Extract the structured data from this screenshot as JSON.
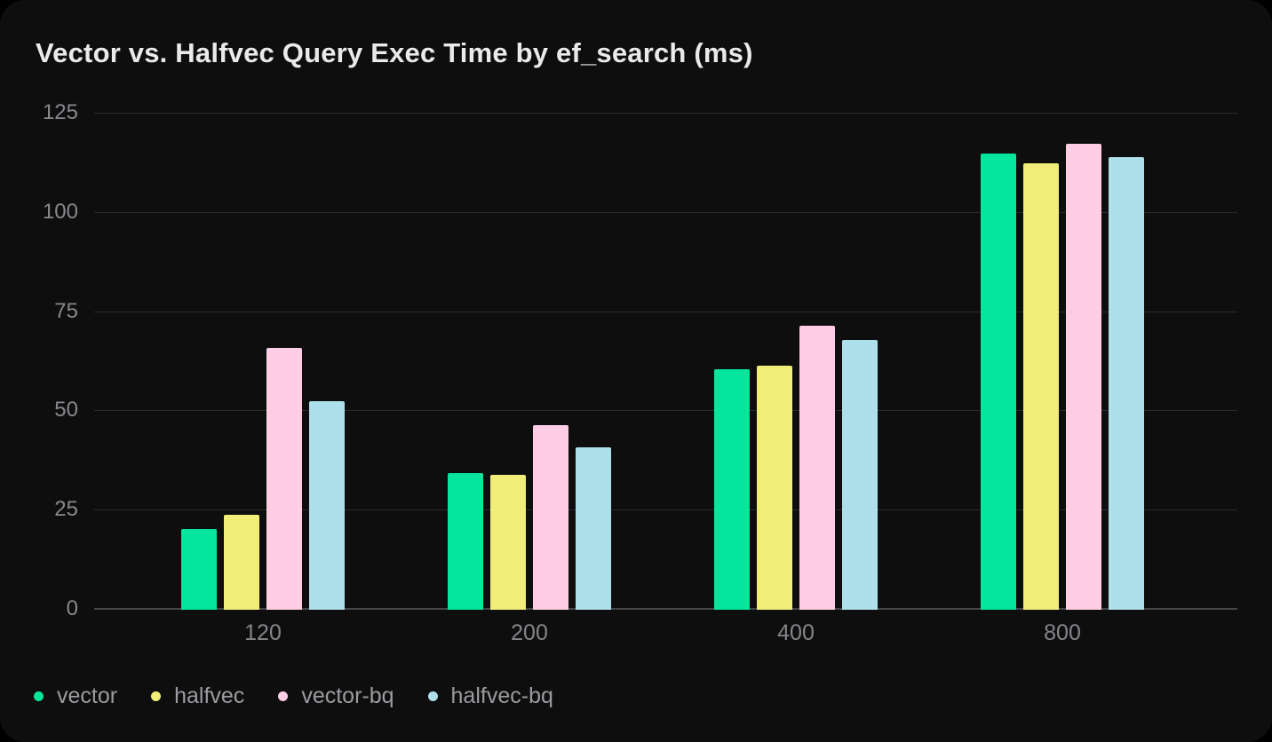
{
  "title": "Vector vs. Halfvec Query Exec Time by ef_search (ms)",
  "colors": {
    "card_background": "#0e0e0f",
    "page_background": "#000000",
    "gridline": "#2a2b2e",
    "zero_line": "#44464b",
    "title_text": "#eaeaec",
    "axis_tick_text": "#88888d",
    "legend_text": "#9b9ba0"
  },
  "chart_data": {
    "type": "bar",
    "title": "Vector vs. Halfvec Query Exec Time by ef_search (ms)",
    "categories": [
      "120",
      "200",
      "400",
      "800"
    ],
    "series": [
      {
        "name": "vector",
        "color": "#06e59c",
        "values": [
          20.3,
          34.5,
          60.5,
          115
        ]
      },
      {
        "name": "halfvec",
        "color": "#f0ee78",
        "values": [
          24,
          34,
          61.5,
          112.5
        ]
      },
      {
        "name": "vector-bq",
        "color": "#ffcde4",
        "values": [
          66,
          46.5,
          71.5,
          117.5
        ]
      },
      {
        "name": "halfvec-bq",
        "color": "#ade0ea",
        "values": [
          52.5,
          41,
          68,
          114
        ]
      }
    ],
    "xlabel": "",
    "ylabel": "",
    "ylim": [
      0,
      125
    ],
    "yticks": [
      0,
      25,
      50,
      75,
      100,
      125
    ],
    "grid": true,
    "legend_position": "bottom-left"
  }
}
